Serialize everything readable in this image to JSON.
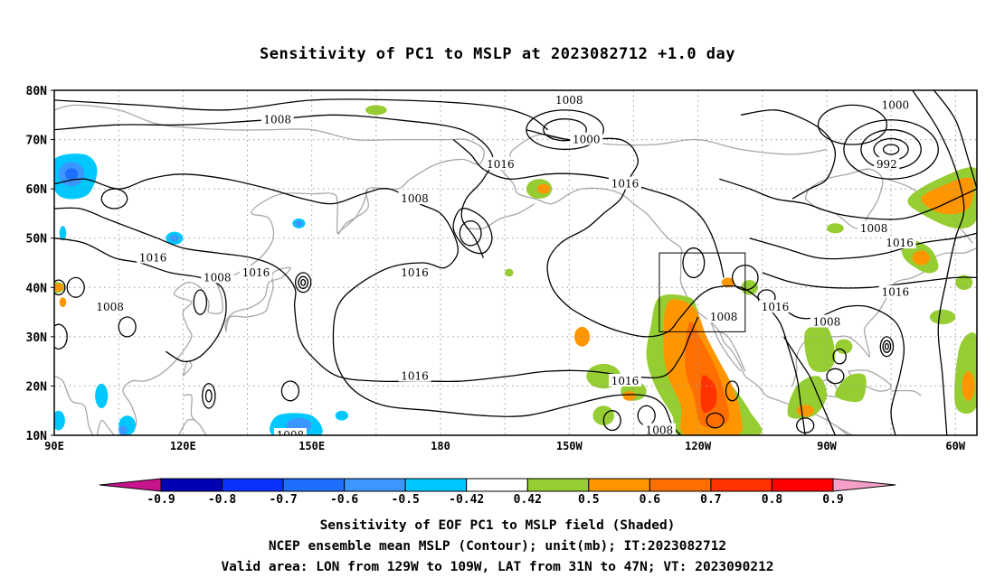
{
  "title": "Sensitivity of PC1 to MSLP at 2023082712 +1.0 day",
  "map": {
    "lon_range": [
      90,
      305
    ],
    "lat_range": [
      10,
      80
    ],
    "lat_labels": [
      "80N",
      "70N",
      "60N",
      "50N",
      "40N",
      "30N",
      "20N",
      "10N"
    ],
    "lon_labels": [
      "90E",
      "120E",
      "150E",
      "180",
      "150W",
      "120W",
      "90W",
      "60W"
    ],
    "grid": true,
    "valid_area_box": {
      "lon": [
        231,
        251
      ],
      "lat": [
        31,
        47
      ]
    },
    "contour_labels": [
      {
        "text": "1008",
        "lon": 128,
        "lat": 42
      },
      {
        "text": "1008",
        "lon": 103,
        "lat": 36
      },
      {
        "text": "1016",
        "lon": 113,
        "lat": 46
      },
      {
        "text": "1016",
        "lon": 137,
        "lat": 43
      },
      {
        "text": "1008",
        "lon": 142,
        "lat": 74
      },
      {
        "text": "1008",
        "lon": 174,
        "lat": 58
      },
      {
        "text": "1016",
        "lon": 174,
        "lat": 43
      },
      {
        "text": "1016",
        "lon": 174,
        "lat": 22
      },
      {
        "text": "1008",
        "lon": 145,
        "lat": 10
      },
      {
        "text": "1008",
        "lon": 210,
        "lat": 78
      },
      {
        "text": "1000",
        "lon": 214,
        "lat": 70
      },
      {
        "text": "1016",
        "lon": 194,
        "lat": 65
      },
      {
        "text": "1016",
        "lon": 223,
        "lat": 61
      },
      {
        "text": "1016",
        "lon": 223,
        "lat": 21
      },
      {
        "text": "1008",
        "lon": 246,
        "lat": 34
      },
      {
        "text": "1016",
        "lon": 258,
        "lat": 36
      },
      {
        "text": "1008",
        "lon": 231,
        "lat": 11
      },
      {
        "text": "1008",
        "lon": 270,
        "lat": 33
      },
      {
        "text": "1000",
        "lon": 286,
        "lat": 77
      },
      {
        "text": "992",
        "lon": 284,
        "lat": 65
      },
      {
        "text": "1008",
        "lon": 281,
        "lat": 52
      },
      {
        "text": "1016",
        "lon": 287,
        "lat": 49
      },
      {
        "text": "1016",
        "lon": 286,
        "lat": 39
      }
    ]
  },
  "colorbar": {
    "labels": [
      "-0.9",
      "-0.8",
      "-0.7",
      "-0.6",
      "-0.5",
      "-0.42",
      "0.42",
      "0.5",
      "0.6",
      "0.7",
      "0.8",
      "0.9"
    ],
    "colors": [
      "#0000b4",
      "#0a32ff",
      "#1e6eff",
      "#3c96ff",
      "#00c8ff",
      "#ffffff",
      "#96cd32",
      "#ff9600",
      "#ff6e00",
      "#ff3200",
      "#ff0000"
    ],
    "low_end_color": "#c8148c",
    "high_end_color": "#f5a0c8"
  },
  "captions": [
    "Sensitivity of EOF PC1 to MSLP field (Shaded)",
    "NCEP ensemble mean MSLP (Contour); unit(mb); IT:2023082712",
    "Valid area: LON from 129W to 109W, LAT from 31N to 47N; VT: 2023090212"
  ]
}
